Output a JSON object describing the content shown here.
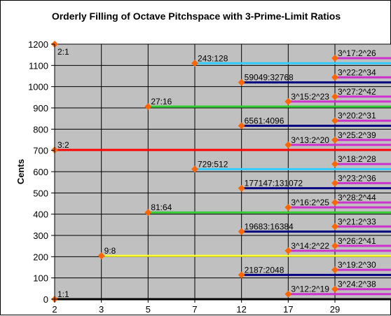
{
  "chart_data": {
    "type": "line",
    "title": "Orderly Filling of Octave Pitchspace with 3-Prime-Limit Ratios",
    "xlabel": "",
    "ylabel": "Cents",
    "x_categories": [
      "2",
      "3",
      "5",
      "7",
      "12",
      "17",
      "29"
    ],
    "ylim": [
      0,
      1200
    ],
    "yticks": [
      0,
      100,
      200,
      300,
      400,
      500,
      600,
      700,
      800,
      900,
      1000,
      1100,
      1200
    ],
    "grid": true,
    "legend": "none",
    "colors": {
      "plot_bg": "#c0c0c0",
      "grid": "#000000",
      "marker": "#ff6600",
      "red": "#ff0000",
      "yellow": "#ffff33",
      "green": "#33cc33",
      "blue": "#33ccff",
      "navy": "#000080",
      "magenta": "#cc33cc",
      "black": "#000000"
    },
    "points": [
      {
        "label": "1:1",
        "x": "2",
        "cents": 0,
        "color": "black"
      },
      {
        "label": "2:1",
        "x": "2",
        "cents": 1200,
        "color": "none"
      },
      {
        "label": "3:2",
        "x": "2",
        "cents": 702,
        "color": "red"
      },
      {
        "label": "9:8",
        "x": "3",
        "cents": 204,
        "color": "yellow"
      },
      {
        "label": "81:64",
        "x": "5",
        "cents": 408,
        "color": "green"
      },
      {
        "label": "27:16",
        "x": "5",
        "cents": 906,
        "color": "green"
      },
      {
        "label": "729:512",
        "x": "7",
        "cents": 612,
        "color": "blue"
      },
      {
        "label": "243:128",
        "x": "7",
        "cents": 1110,
        "color": "blue"
      },
      {
        "label": "2187:2048",
        "x": "12",
        "cents": 114,
        "color": "navy"
      },
      {
        "label": "19683:16384",
        "x": "12",
        "cents": 318,
        "color": "navy"
      },
      {
        "label": "177147:131072",
        "x": "12",
        "cents": 522,
        "color": "navy"
      },
      {
        "label": "6561:4096",
        "x": "12",
        "cents": 816,
        "color": "navy"
      },
      {
        "label": "59049:32768",
        "x": "12",
        "cents": 1020,
        "color": "navy"
      },
      {
        "label": "3^12:2^19",
        "x": "17",
        "cents": 24,
        "color": "magenta"
      },
      {
        "label": "3^14:2^22",
        "x": "17",
        "cents": 228,
        "color": "magenta"
      },
      {
        "label": "3^16:2^25",
        "x": "17",
        "cents": 432,
        "color": "magenta"
      },
      {
        "label": "3^13:2^20",
        "x": "17",
        "cents": 726,
        "color": "magenta"
      },
      {
        "label": "3^15:2^23",
        "x": "17",
        "cents": 930,
        "color": "magenta"
      },
      {
        "label": "3^24:2^38",
        "x": "29",
        "cents": 47,
        "color": "magenta"
      },
      {
        "label": "3^19:2^30",
        "x": "29",
        "cents": 138,
        "color": "magenta"
      },
      {
        "label": "3^26:2^41",
        "x": "29",
        "cents": 251,
        "color": "magenta"
      },
      {
        "label": "3^21:2^33",
        "x": "29",
        "cents": 342,
        "color": "magenta"
      },
      {
        "label": "3^28:2^44",
        "x": "29",
        "cents": 455,
        "color": "magenta"
      },
      {
        "label": "3^23:2^36",
        "x": "29",
        "cents": 546,
        "color": "magenta"
      },
      {
        "label": "3^18:2^28",
        "x": "29",
        "cents": 636,
        "color": "magenta"
      },
      {
        "label": "3^25:2^39",
        "x": "29",
        "cents": 749,
        "color": "magenta"
      },
      {
        "label": "3^20:2^31",
        "x": "29",
        "cents": 840,
        "color": "magenta"
      },
      {
        "label": "3^27:2^42",
        "x": "29",
        "cents": 953,
        "color": "magenta"
      },
      {
        "label": "3^22:2^34",
        "x": "29",
        "cents": 1044,
        "color": "magenta"
      },
      {
        "label": "3^17:2^26",
        "x": "29",
        "cents": 1134,
        "color": "magenta"
      }
    ]
  }
}
